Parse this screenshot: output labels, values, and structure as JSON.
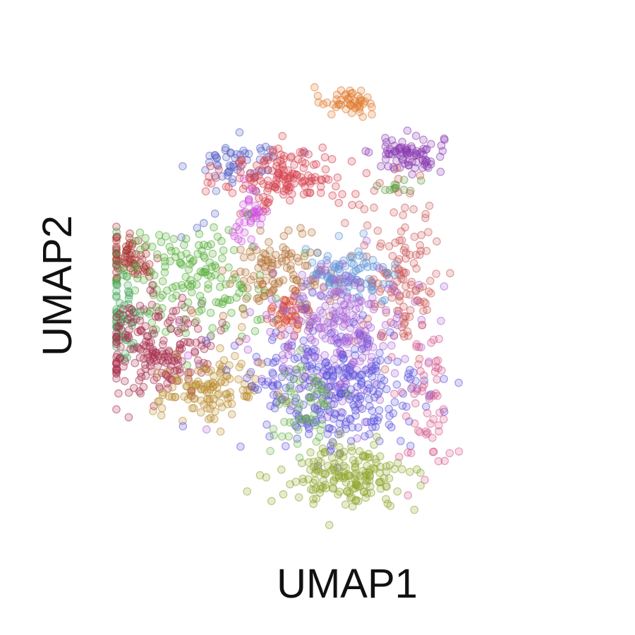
{
  "chart_data": {
    "type": "scatter",
    "title": "",
    "xlabel": "UMAP1",
    "ylabel": "UMAP2",
    "xlim": [
      0,
      10
    ],
    "ylim": [
      0,
      10
    ],
    "grid": false,
    "legend": "none",
    "series": [
      {
        "color": "#e07a2e",
        "center": [
          5.15,
          9.0
        ],
        "spread": [
          0.3,
          0.14
        ],
        "count": 45,
        "outliers": [
          [
            4.8,
            8.7
          ],
          [
            5.7,
            8.7
          ],
          [
            4.7,
            8.95
          ],
          [
            5.5,
            8.65
          ]
        ]
      },
      {
        "color": "#8a3ab0",
        "center": [
          6.5,
          7.85
        ],
        "spread": [
          0.4,
          0.2
        ],
        "count": 80,
        "outliers": [
          [
            6.0,
            8.2
          ],
          [
            6.15,
            8.15
          ],
          [
            6.9,
            7.95
          ]
        ]
      },
      {
        "color": "#5a9a3c",
        "center": [
          6.25,
          7.2
        ],
        "spread": [
          0.18,
          0.1
        ],
        "count": 10,
        "outliers": [
          [
            6.8,
            7.3
          ],
          [
            6.0,
            7.1
          ]
        ]
      },
      {
        "color": "#5560c4",
        "center": [
          2.75,
          7.7
        ],
        "spread": [
          0.45,
          0.24
        ],
        "count": 55,
        "outliers": [
          [
            1.95,
            6.4
          ],
          [
            1.45,
            6.1
          ],
          [
            2.2,
            6.6
          ],
          [
            1.8,
            6.3
          ]
        ]
      },
      {
        "color": "#d4414f",
        "center": [
          3.8,
          7.35
        ],
        "spread": [
          0.7,
          0.33
        ],
        "count": 150,
        "outliers": [
          [
            3.5,
            7.95
          ],
          [
            4.1,
            7.9
          ]
        ]
      },
      {
        "color": "#cc4edb",
        "center": [
          2.95,
          6.55
        ],
        "spread": [
          0.22,
          0.3
        ],
        "count": 38,
        "outliers": [
          [
            1.9,
            4.7
          ],
          [
            1.4,
            4.3
          ],
          [
            2.1,
            4.0
          ],
          [
            2.9,
            3.95
          ],
          [
            1.6,
            3.6
          ]
        ]
      },
      {
        "color": "#a8332f",
        "center": [
          0.3,
          5.65
        ],
        "spread": [
          0.35,
          0.24
        ],
        "count": 70,
        "outliers": []
      },
      {
        "color": "#46a65b",
        "center": [
          0.15,
          4.55
        ],
        "spread": [
          0.22,
          0.55
        ],
        "count": 70,
        "outliers": []
      },
      {
        "color": "#52ab34",
        "center": [
          1.75,
          5.2
        ],
        "spread": [
          0.85,
          0.55
        ],
        "count": 150,
        "outliers": [
          [
            0.8,
            5.9
          ],
          [
            1.0,
            6.0
          ],
          [
            2.8,
            4.0
          ],
          [
            3.15,
            4.35
          ]
        ]
      },
      {
        "color": "#a82f4e",
        "center": [
          0.9,
          3.75
        ],
        "spread": [
          0.65,
          0.52
        ],
        "count": 200,
        "outliers": []
      },
      {
        "color": "#b98c2f",
        "center": [
          2.1,
          2.85
        ],
        "spread": [
          0.58,
          0.32
        ],
        "count": 120,
        "outliers": [
          [
            2.8,
            4.2
          ],
          [
            3.1,
            3.1
          ],
          [
            1.7,
            4.5
          ],
          [
            2.4,
            3.5
          ]
        ]
      },
      {
        "color": "#b36f32",
        "center": [
          3.7,
          5.35
        ],
        "spread": [
          0.6,
          0.4
        ],
        "count": 110,
        "outliers": [
          [
            3.4,
            6.0
          ],
          [
            3.0,
            5.2
          ],
          [
            2.9,
            4.8
          ]
        ]
      },
      {
        "color": "#d9432f",
        "center": [
          3.85,
          4.45
        ],
        "spread": [
          0.22,
          0.3
        ],
        "count": 48,
        "outliers": []
      },
      {
        "color": "#cc5a5a",
        "center": [
          6.35,
          5.35
        ],
        "spread": [
          0.42,
          0.85
        ],
        "count": 130,
        "outliers": [
          [
            5.6,
            6.35
          ],
          [
            5.1,
            6.4
          ],
          [
            6.9,
            4.7
          ]
        ]
      },
      {
        "color": "#5a92d4",
        "center": [
          5.15,
          5.25
        ],
        "spread": [
          0.55,
          0.28
        ],
        "count": 95,
        "outliers": []
      },
      {
        "color": "#a863d6",
        "center": [
          4.95,
          4.05
        ],
        "spread": [
          0.75,
          0.72
        ],
        "count": 260,
        "outliers": []
      },
      {
        "color": "#5a52dc",
        "center": [
          4.85,
          2.8
        ],
        "spread": [
          1.05,
          0.7
        ],
        "count": 280,
        "outliers": [
          [
            3.5,
            3.2
          ],
          [
            3.25,
            3.05
          ]
        ]
      },
      {
        "color": "#6ab34a",
        "center": [
          4.15,
          2.55
        ],
        "spread": [
          0.38,
          0.55
        ],
        "count": 55,
        "outliers": []
      },
      {
        "color": "#d65a8c",
        "center": [
          6.9,
          2.5
        ],
        "spread": [
          0.28,
          0.8
        ],
        "count": 60,
        "outliers": []
      },
      {
        "color": "#8ea52b",
        "center": [
          5.1,
          1.05
        ],
        "spread": [
          0.72,
          0.32
        ],
        "count": 170,
        "outliers": []
      }
    ]
  }
}
